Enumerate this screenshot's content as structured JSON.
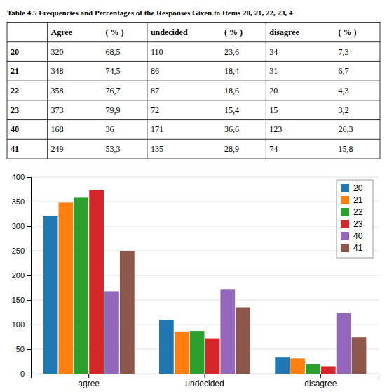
{
  "chart_data": [
    {
      "type": "table",
      "title": "Table 4.5 Frequencies and Percentages of the Responses Given to Items 20, 21, 22, 23, 4",
      "columns": [
        null,
        "Agree",
        "( % )",
        "undecided",
        "( % )",
        "disagree",
        "( % )"
      ],
      "rows": [
        [
          "20",
          "320",
          "68,5",
          "110",
          "23,6",
          "34",
          "7,3"
        ],
        [
          "21",
          "348",
          "74,5",
          "86",
          "18,4",
          "31",
          "6,7"
        ],
        [
          "22",
          "358",
          "76,7",
          "87",
          "18,6",
          "20",
          "4,3"
        ],
        [
          "23",
          "373",
          "79,9",
          "72",
          "15,4",
          "15",
          "3,2"
        ],
        [
          "40",
          "168",
          "36",
          "171",
          "36,6",
          "123",
          "26,3"
        ],
        [
          "41",
          "249",
          "53,3",
          "135",
          "28,9",
          "74",
          "15,8"
        ]
      ]
    },
    {
      "type": "bar",
      "categories": [
        "agree",
        "undecided",
        "disagree"
      ],
      "series": [
        {
          "name": "20",
          "values": [
            320,
            110,
            34
          ]
        },
        {
          "name": "21",
          "values": [
            348,
            86,
            31
          ]
        },
        {
          "name": "22",
          "values": [
            358,
            87,
            20
          ]
        },
        {
          "name": "23",
          "values": [
            373,
            72,
            15
          ]
        },
        {
          "name": "40",
          "values": [
            168,
            171,
            123
          ]
        },
        {
          "name": "41",
          "values": [
            249,
            135,
            74
          ]
        }
      ],
      "ylim": [
        0,
        400
      ],
      "yticks": [
        0,
        50,
        100,
        150,
        200,
        250,
        300,
        350,
        400
      ],
      "grid": true,
      "legend": "upper right"
    }
  ]
}
